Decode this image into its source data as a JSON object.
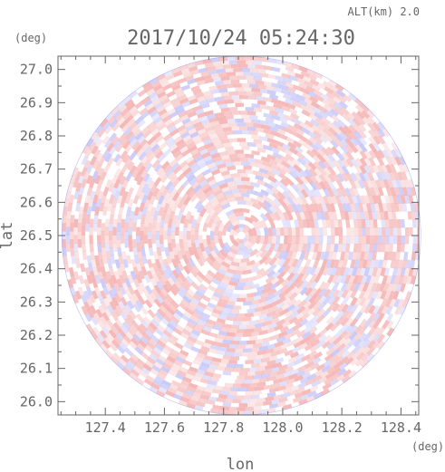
{
  "header": {
    "altitude_label": "ALT(km) 2.0",
    "timestamp": "2017/10/24 05:24:30"
  },
  "chart_data": {
    "type": "heatmap",
    "title": "2017/10/24 05:24:30",
    "subtitle": "ALT(km) 2.0",
    "xlabel": "lon",
    "ylabel": "lat",
    "x_unit": "(deg)",
    "y_unit": "(deg)",
    "xlim": [
      127.24,
      128.46
    ],
    "ylim": [
      25.96,
      27.04
    ],
    "x_ticks": [
      127.4,
      127.6,
      127.8,
      128.0,
      128.2,
      128.4
    ],
    "x_tick_labels": [
      "127.4",
      "127.6",
      "127.8",
      "128.0",
      "128.2",
      "128.4"
    ],
    "y_ticks": [
      26.0,
      26.1,
      26.2,
      26.3,
      26.4,
      26.5,
      26.6,
      26.7,
      26.8,
      26.9,
      27.0
    ],
    "y_tick_labels": [
      "26.0",
      "26.1",
      "26.2",
      "26.3",
      "26.4",
      "26.5",
      "26.6",
      "26.7",
      "26.8",
      "26.9",
      "27.0"
    ],
    "radar_center": {
      "lon": 127.86,
      "lat": 26.5
    },
    "radar_radius_deg_lat": 0.54,
    "colors": {
      "positive": "#f2a0a0",
      "negative": "#a8a8f4",
      "axis": "#666666"
    },
    "grid": false,
    "legend": "none"
  }
}
